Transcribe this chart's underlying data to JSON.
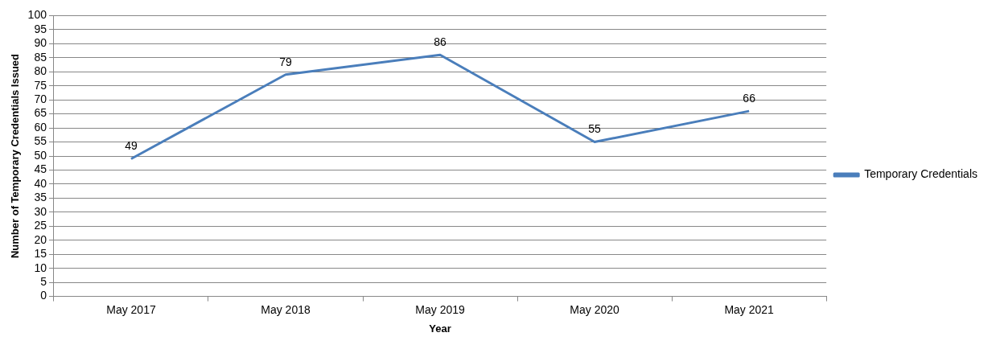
{
  "chart_data": {
    "type": "line",
    "xlabel": "Year",
    "ylabel": "Number of Temporary Credentials Issued",
    "categories": [
      "May 2017",
      "May 2018",
      "May 2019",
      "May 2020",
      "May 2021"
    ],
    "series": [
      {
        "name": "Temporary Credentials",
        "color": "#4a7ebb",
        "values": [
          49,
          79,
          86,
          55,
          66
        ]
      }
    ],
    "ylim": [
      0,
      100
    ],
    "yticks": [
      0,
      5,
      10,
      15,
      20,
      25,
      30,
      35,
      40,
      45,
      50,
      55,
      60,
      65,
      70,
      75,
      80,
      85,
      90,
      95,
      100
    ],
    "grid": "y",
    "legend": "right",
    "marker": "none",
    "line_style": "solid",
    "data_labels": true
  }
}
